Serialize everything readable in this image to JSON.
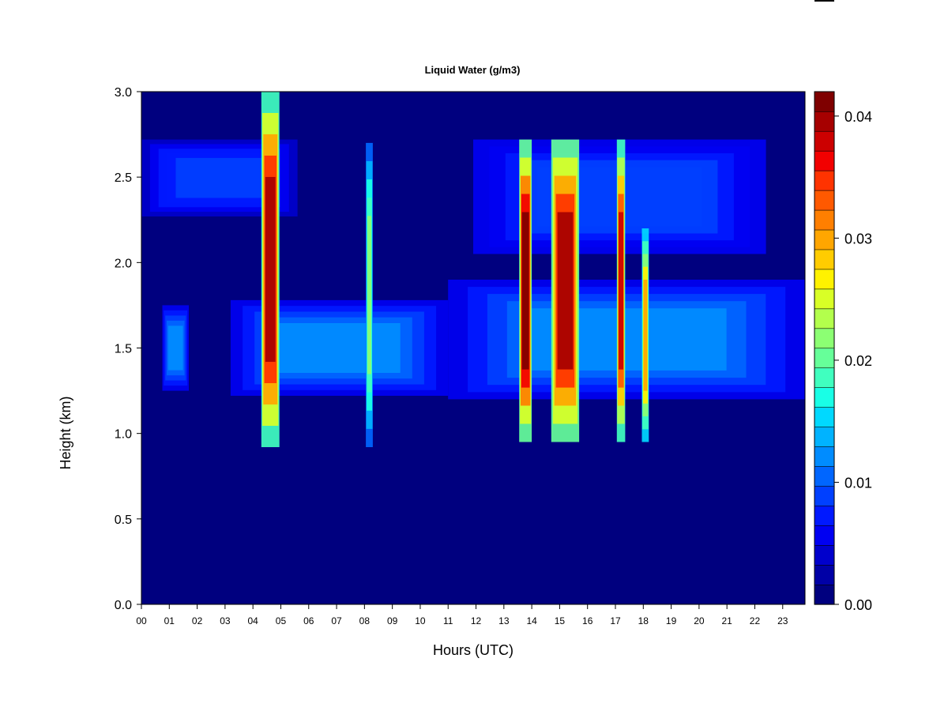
{
  "chart_data": {
    "type": "heatmap",
    "title": "Liquid Water (g/m3)",
    "xlabel": "Hours (UTC)",
    "ylabel": "Height (km)",
    "x_ticks": [
      "00",
      "01",
      "02",
      "03",
      "04",
      "05",
      "06",
      "07",
      "08",
      "09",
      "10",
      "11",
      "12",
      "13",
      "14",
      "15",
      "16",
      "17",
      "18",
      "19",
      "20",
      "21",
      "22",
      "23"
    ],
    "xlim": [
      0,
      23.8
    ],
    "y_ticks": [
      "0.0",
      "0.5",
      "1.0",
      "1.5",
      "2.0",
      "2.5",
      "3.0"
    ],
    "ylim": [
      0,
      3.0
    ],
    "colorbar": {
      "ticks": [
        "0.00",
        "0.01",
        "0.02",
        "0.03",
        "0.04"
      ],
      "range": [
        0,
        0.042
      ],
      "levels": 21,
      "colors": [
        "#00007F",
        "#0000A6",
        "#0000CC",
        "#0000F2",
        "#0019FF",
        "#0040FF",
        "#0066FF",
        "#008CFF",
        "#00B3FF",
        "#00D9FF",
        "#19FFE6",
        "#40FFBF",
        "#66FF99",
        "#8CFF73",
        "#B3FF4C",
        "#D9FF26",
        "#FFF200",
        "#FFCC00",
        "#FFA600",
        "#FF7F00",
        "#FF5900",
        "#FF3300",
        "#F20000",
        "#CC0000",
        "#A60000",
        "#7F0000"
      ]
    },
    "regions": [
      {
        "name": "upper-layer-early",
        "x": [
          0,
          5.6
        ],
        "y": [
          2.27,
          2.72
        ],
        "value": 0.008
      },
      {
        "name": "upper-layer-late",
        "x": [
          11.9,
          22.4
        ],
        "y": [
          2.05,
          2.72
        ],
        "value": 0.009
      },
      {
        "name": "main-layer-early",
        "x": [
          3.2,
          11.0
        ],
        "y": [
          1.22,
          1.78
        ],
        "value": 0.011
      },
      {
        "name": "main-layer-late",
        "x": [
          11.0,
          23.8
        ],
        "y": [
          1.2,
          1.9
        ],
        "value": 0.012
      },
      {
        "name": "patch-01h",
        "x": [
          0.75,
          1.7
        ],
        "y": [
          1.25,
          1.75
        ],
        "value": 0.011
      },
      {
        "name": "spike-0445",
        "x": [
          4.3,
          4.95
        ],
        "y": [
          0.92,
          3.0
        ],
        "value": 0.04
      },
      {
        "name": "spike-0815",
        "x": [
          8.05,
          8.3
        ],
        "y": [
          0.92,
          2.7
        ],
        "value": 0.022
      },
      {
        "name": "core-1345",
        "x": [
          13.55,
          14.0
        ],
        "y": [
          0.95,
          2.72
        ],
        "value": 0.042
      },
      {
        "name": "core-1500",
        "x": [
          14.7,
          15.7
        ],
        "y": [
          0.95,
          2.72
        ],
        "value": 0.041
      },
      {
        "name": "core-1715",
        "x": [
          17.05,
          17.35
        ],
        "y": [
          0.95,
          2.72
        ],
        "value": 0.038
      },
      {
        "name": "core-1800",
        "x": [
          17.95,
          18.2
        ],
        "y": [
          0.95,
          2.2
        ],
        "value": 0.03
      }
    ]
  }
}
